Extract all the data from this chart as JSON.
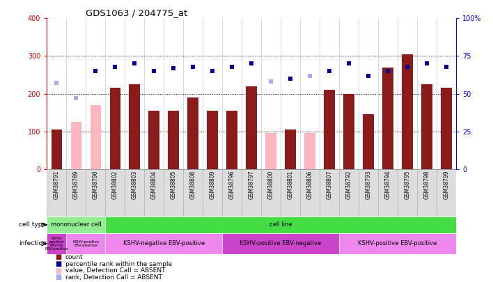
{
  "title": "GDS1063 / 204775_at",
  "samples": [
    "GSM38791",
    "GSM38789",
    "GSM38790",
    "GSM38802",
    "GSM38803",
    "GSM38804",
    "GSM38805",
    "GSM38808",
    "GSM38809",
    "GSM38796",
    "GSM38797",
    "GSM38800",
    "GSM38801",
    "GSM38806",
    "GSM38807",
    "GSM38792",
    "GSM38793",
    "GSM38794",
    "GSM38795",
    "GSM38798",
    "GSM38799"
  ],
  "count_values": [
    105,
    125,
    170,
    215,
    225,
    155,
    155,
    190,
    155,
    155,
    220,
    95,
    105,
    95,
    210,
    200,
    145,
    270,
    305,
    225,
    215
  ],
  "count_absent": [
    false,
    true,
    true,
    false,
    false,
    false,
    false,
    false,
    false,
    false,
    false,
    true,
    false,
    true,
    false,
    false,
    false,
    false,
    false,
    false,
    false
  ],
  "percentile_values_raw": [
    57,
    47,
    65,
    68,
    70,
    65,
    67,
    68,
    65,
    68,
    70,
    58,
    60,
    62,
    65,
    70,
    62,
    65,
    68,
    70,
    68
  ],
  "percentile_absent": [
    true,
    true,
    false,
    false,
    false,
    false,
    false,
    false,
    false,
    false,
    false,
    true,
    false,
    true,
    false,
    false,
    false,
    false,
    false,
    false,
    false
  ],
  "bar_color_present": "#8B1A1A",
  "bar_color_absent": "#FFB6C1",
  "dot_color_present": "#00008B",
  "dot_color_absent": "#AAAAEE",
  "cell_type_groups": [
    {
      "label": "mononuclear cell",
      "start": 0,
      "end": 3,
      "color": "#90EE90"
    },
    {
      "label": "cell line",
      "start": 3,
      "end": 21,
      "color": "#44DD44"
    }
  ],
  "infection_groups": [
    {
      "label": "KSHV-\npositive\nEBV-ne\nEBV-positive",
      "start": 0,
      "end": 1,
      "color": "#CC44CC"
    },
    {
      "label": "KSHV-positive\nEBV-positive",
      "start": 1,
      "end": 3,
      "color": "#EE88EE"
    },
    {
      "label": "KSHV-negative EBV-positive",
      "start": 3,
      "end": 9,
      "color": "#EE88EE"
    },
    {
      "label": "KSHV-positive EBV-negative",
      "start": 9,
      "end": 15,
      "color": "#CC44CC"
    },
    {
      "label": "KSHV-positive EBV-positive",
      "start": 15,
      "end": 21,
      "color": "#EE88EE"
    }
  ],
  "legend_items": [
    {
      "color": "#8B1A1A",
      "label": "count"
    },
    {
      "color": "#00008B",
      "label": "percentile rank within the sample"
    },
    {
      "color": "#FFB6C1",
      "label": "value, Detection Call = ABSENT"
    },
    {
      "color": "#AAAAEE",
      "label": "rank, Detection Call = ABSENT"
    }
  ]
}
